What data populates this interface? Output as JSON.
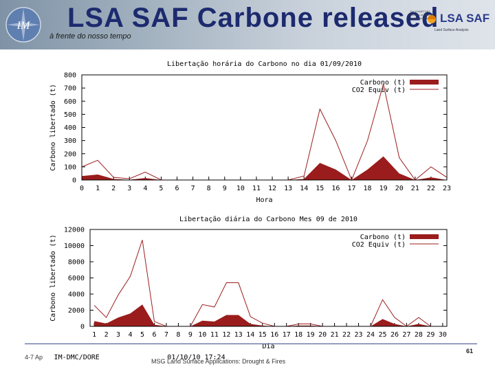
{
  "header": {
    "title": "LSA SAF Carbone released",
    "subtitle": "à frente do nosso tempo",
    "logo_text": "IM",
    "lsa_logo_text": "LSA SAF",
    "lsa_logo_sub": "Land Surface Analysis",
    "lsa_logo_tiny": "The EUMETSAT Network of Satellite Application Facilities"
  },
  "chart_data": [
    {
      "type": "area",
      "title": "Libertação horária do Carbono no dia 01/09/2010",
      "xlabel": "Hora",
      "ylabel": "Carbono libertado (t)",
      "ylim": [
        0,
        800
      ],
      "yticks": [
        0,
        100,
        200,
        300,
        400,
        500,
        600,
        700,
        800
      ],
      "x": [
        0,
        1,
        2,
        3,
        4,
        5,
        6,
        7,
        8,
        9,
        10,
        11,
        12,
        13,
        14,
        15,
        16,
        17,
        18,
        19,
        20,
        21,
        22,
        23
      ],
      "legend_position": "top-right",
      "series": [
        {
          "name": "Carbono (t)",
          "style": "filled",
          "color": "#9b1c1c",
          "values": [
            30,
            42,
            8,
            2,
            15,
            0,
            0,
            0,
            0,
            0,
            0,
            0,
            0,
            0,
            8,
            130,
            80,
            0,
            80,
            180,
            50,
            0,
            20,
            0
          ]
        },
        {
          "name": "CO2 Equiv (t)",
          "style": "line",
          "color": "#9b1c1c",
          "values": [
            100,
            150,
            20,
            10,
            60,
            0,
            0,
            0,
            0,
            0,
            0,
            0,
            0,
            0,
            30,
            540,
            300,
            0,
            300,
            730,
            170,
            0,
            100,
            20
          ]
        }
      ]
    },
    {
      "type": "area",
      "title": "Libertação diária do Carbono Mes 09 de 2010",
      "xlabel": "Dia",
      "ylabel": "Carbono libertado (t)",
      "ylim": [
        0,
        12000
      ],
      "yticks": [
        0,
        2000,
        4000,
        6000,
        8000,
        10000,
        12000
      ],
      "x": [
        1,
        2,
        3,
        4,
        5,
        6,
        7,
        8,
        9,
        10,
        11,
        12,
        13,
        14,
        15,
        16,
        17,
        18,
        19,
        20,
        21,
        22,
        23,
        24,
        25,
        26,
        27,
        28,
        29,
        30
      ],
      "legend_position": "top-right",
      "series": [
        {
          "name": "Carbono (t)",
          "style": "filled",
          "color": "#9b1c1c",
          "values": [
            650,
            350,
            1100,
            1600,
            2700,
            200,
            0,
            0,
            0,
            700,
            600,
            1400,
            1400,
            300,
            100,
            0,
            0,
            100,
            100,
            0,
            0,
            0,
            0,
            0,
            900,
            300,
            0,
            300,
            0,
            0
          ]
        },
        {
          "name": "CO2 Equiv (t)",
          "style": "line",
          "color": "#9b1c1c",
          "values": [
            2600,
            1100,
            3900,
            6200,
            10700,
            600,
            0,
            0,
            0,
            2700,
            2400,
            5400,
            5400,
            1200,
            400,
            0,
            0,
            300,
            300,
            0,
            0,
            0,
            0,
            0,
            3300,
            1100,
            0,
            1100,
            0,
            0
          ]
        }
      ]
    }
  ],
  "footer": {
    "left": "4-7 Ap",
    "left_mono": "IM-DMC/DORE",
    "timestamp": "01/10/10 17:24",
    "center": "MSG Land Surface Applications: Drought & Fires",
    "page": "61"
  }
}
